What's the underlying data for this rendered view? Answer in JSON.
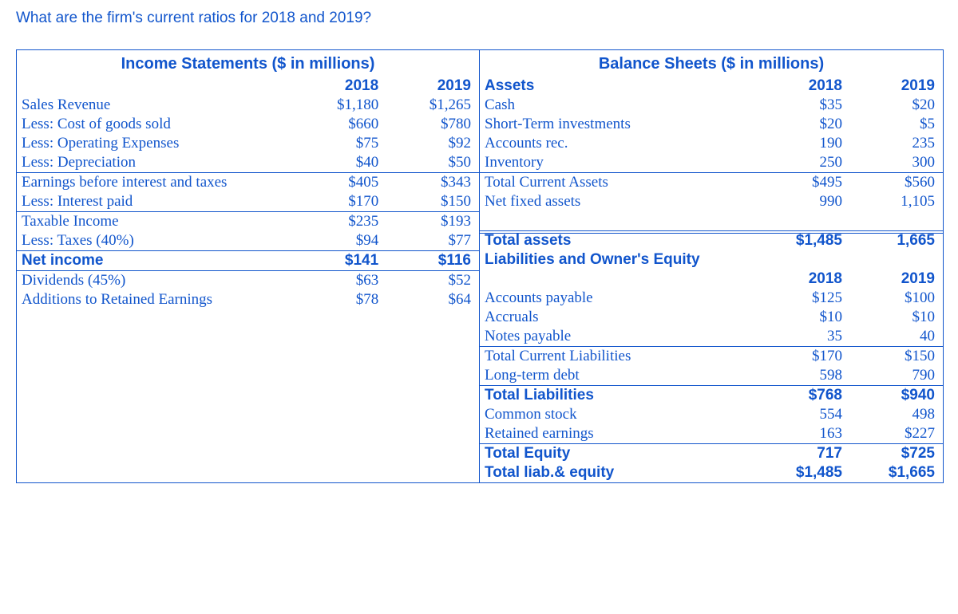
{
  "question": "What are the firm's current ratios for 2018 and 2019?",
  "colors": {
    "primary": "#1155cc",
    "background": "#ffffff"
  },
  "typography": {
    "serif": "Times New Roman",
    "sans": "Arial",
    "base_size_pt": 14
  },
  "income": {
    "title": "Income Statements ($ in millions)",
    "years": [
      "2018",
      "2019"
    ],
    "rows": [
      {
        "label": "Sales Revenue",
        "v18": "$1,180",
        "v19": "$1,265"
      },
      {
        "label": "Less: Cost of goods sold",
        "v18": "$660",
        "v19": "$780"
      },
      {
        "label": "Less: Operating Expenses",
        "v18": "$75",
        "v19": "$92"
      },
      {
        "label": "Less: Depreciation",
        "v18": "$40",
        "v19": "$50"
      },
      {
        "label": "Earnings before interest and taxes",
        "v18": "$405",
        "v19": "$343",
        "border": "top"
      },
      {
        "label": "Less: Interest paid",
        "v18": "$170",
        "v19": "$150"
      },
      {
        "label": "Taxable Income",
        "v18": "$235",
        "v19": "$193",
        "border": "top"
      },
      {
        "label": "Less: Taxes (40%)",
        "v18": "$94",
        "v19": "$77"
      },
      {
        "label": "Net income",
        "v18": "$141",
        "v19": "$116",
        "border": "top-bottom",
        "bold": true
      },
      {
        "label": "Dividends (45%)",
        "v18": "$63",
        "v19": "$52"
      },
      {
        "label": "Additions to Retained Earnings",
        "v18": "$78",
        "v19": "$64"
      }
    ]
  },
  "balance": {
    "title": "Balance Sheets ($ in millions)",
    "years": [
      "2018",
      "2019"
    ],
    "assets_heading": "Assets",
    "assets": [
      {
        "label": "Cash",
        "v18": "$35",
        "v19": "$20"
      },
      {
        "label": "Short-Term investments",
        "v18": "$20",
        "v19": "$5"
      },
      {
        "label": "Accounts rec.",
        "v18": "190",
        "v19": "235"
      },
      {
        "label": "Inventory",
        "v18": "250",
        "v19": "300"
      },
      {
        "label": "Total Current Assets",
        "v18": "$495",
        "v19": "$560",
        "border": "top"
      },
      {
        "label": "Net fixed assets",
        "v18": "990",
        "v19": "1,105"
      }
    ],
    "total_assets": {
      "label": "Total assets",
      "v18": "$1,485",
      "v19": "1,665"
    },
    "liab_heading": "Liabilities and Owner's Equity",
    "liab": [
      {
        "label": "Accounts payable",
        "v18": "$125",
        "v19": "$100"
      },
      {
        "label": "Accruals",
        "v18": "$10",
        "v19": "$10"
      },
      {
        "label": "Notes payable",
        "v18": "35",
        "v19": "40"
      },
      {
        "label": "Total Current Liabilities",
        "v18": "$170",
        "v19": "$150",
        "border": "top"
      },
      {
        "label": "Long-term debt",
        "v18": "598",
        "v19": "790"
      },
      {
        "label": "Total Liabilities",
        "v18": "$768",
        "v19": "$940",
        "border": "top",
        "bold": true
      },
      {
        "label": "Common stock",
        "v18": "554",
        "v19": "498"
      },
      {
        "label": "Retained earnings",
        "v18": "163",
        "v19": "$227"
      },
      {
        "label": "Total Equity",
        "v18": "717",
        "v19": "$725",
        "border": "top",
        "bold": true
      },
      {
        "label": "Total liab.& equity",
        "v18": "$1,485",
        "v19": "$1,665",
        "bold": true
      }
    ]
  }
}
